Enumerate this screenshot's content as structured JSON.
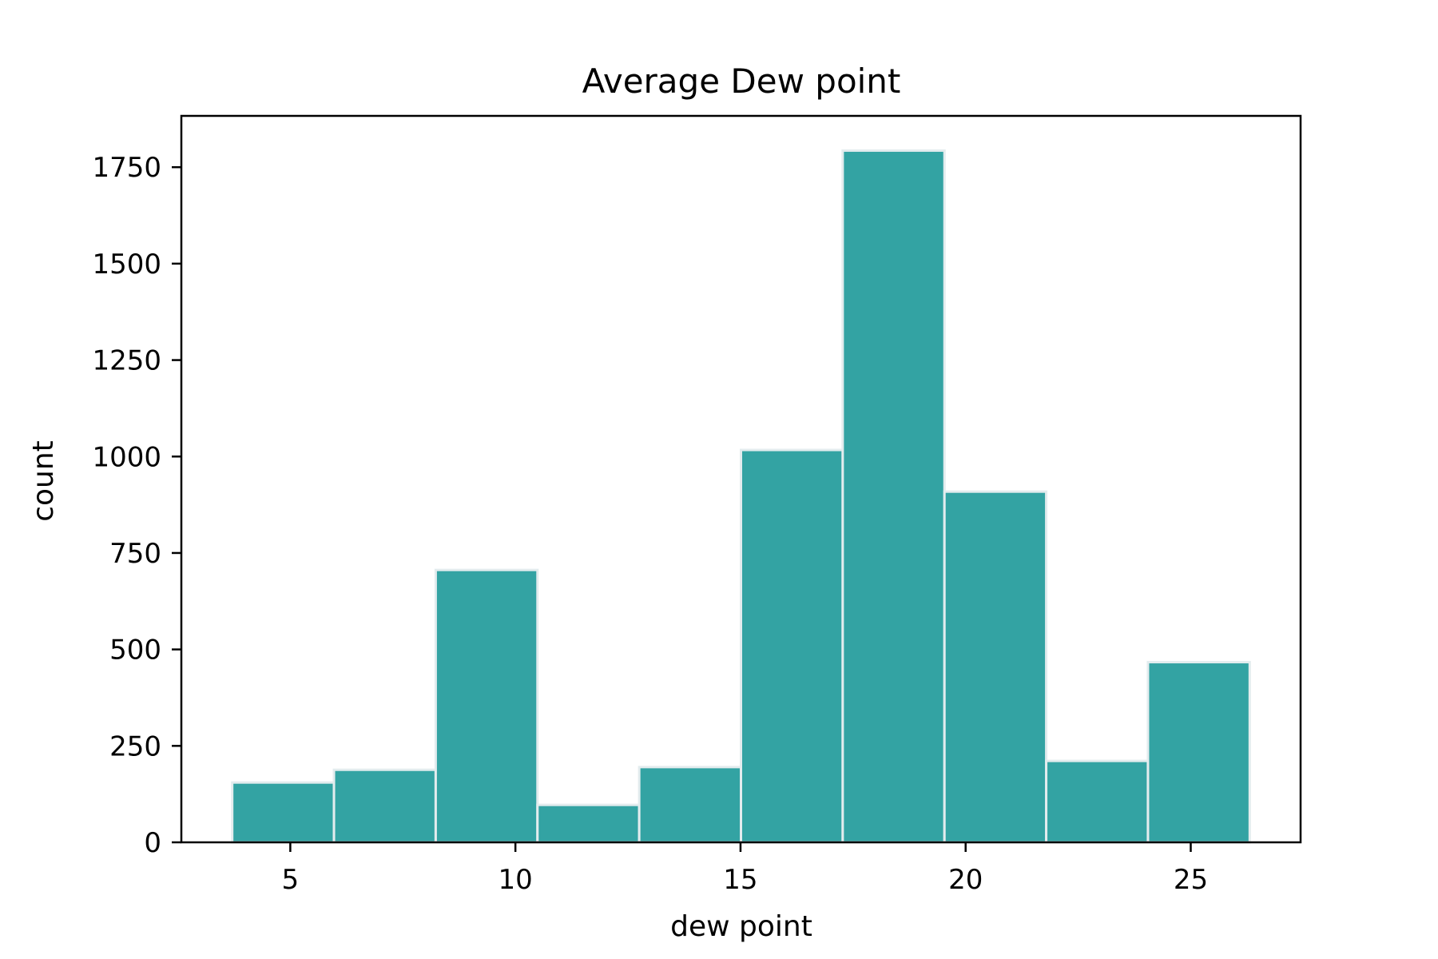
{
  "chart_data": {
    "type": "bar",
    "title": "Average Dew point",
    "xlabel": "dew point",
    "ylabel": "count",
    "bin_edges": [
      3.71,
      5.97,
      8.23,
      10.49,
      12.75,
      15.01,
      17.27,
      19.53,
      21.79,
      24.05,
      26.31
    ],
    "values": [
      155,
      188,
      706,
      97,
      195,
      1017,
      1793,
      909,
      211,
      467
    ],
    "xlim": [
      2.58,
      27.44
    ],
    "ylim": [
      0,
      1883
    ],
    "xticks": [
      5,
      10,
      15,
      20,
      25
    ],
    "xtick_labels": [
      "5",
      "10",
      "15",
      "20",
      "25"
    ],
    "yticks": [
      0,
      250,
      500,
      750,
      1000,
      1250,
      1500,
      1750
    ],
    "ytick_labels": [
      "0",
      "250",
      "500",
      "750",
      "1000",
      "1250",
      "1500",
      "1750"
    ],
    "grid": false,
    "legend": "none",
    "colors": {
      "bar_fill": "#33a3a3",
      "bar_edge": "#e3ecee",
      "axes": "#000000"
    }
  }
}
